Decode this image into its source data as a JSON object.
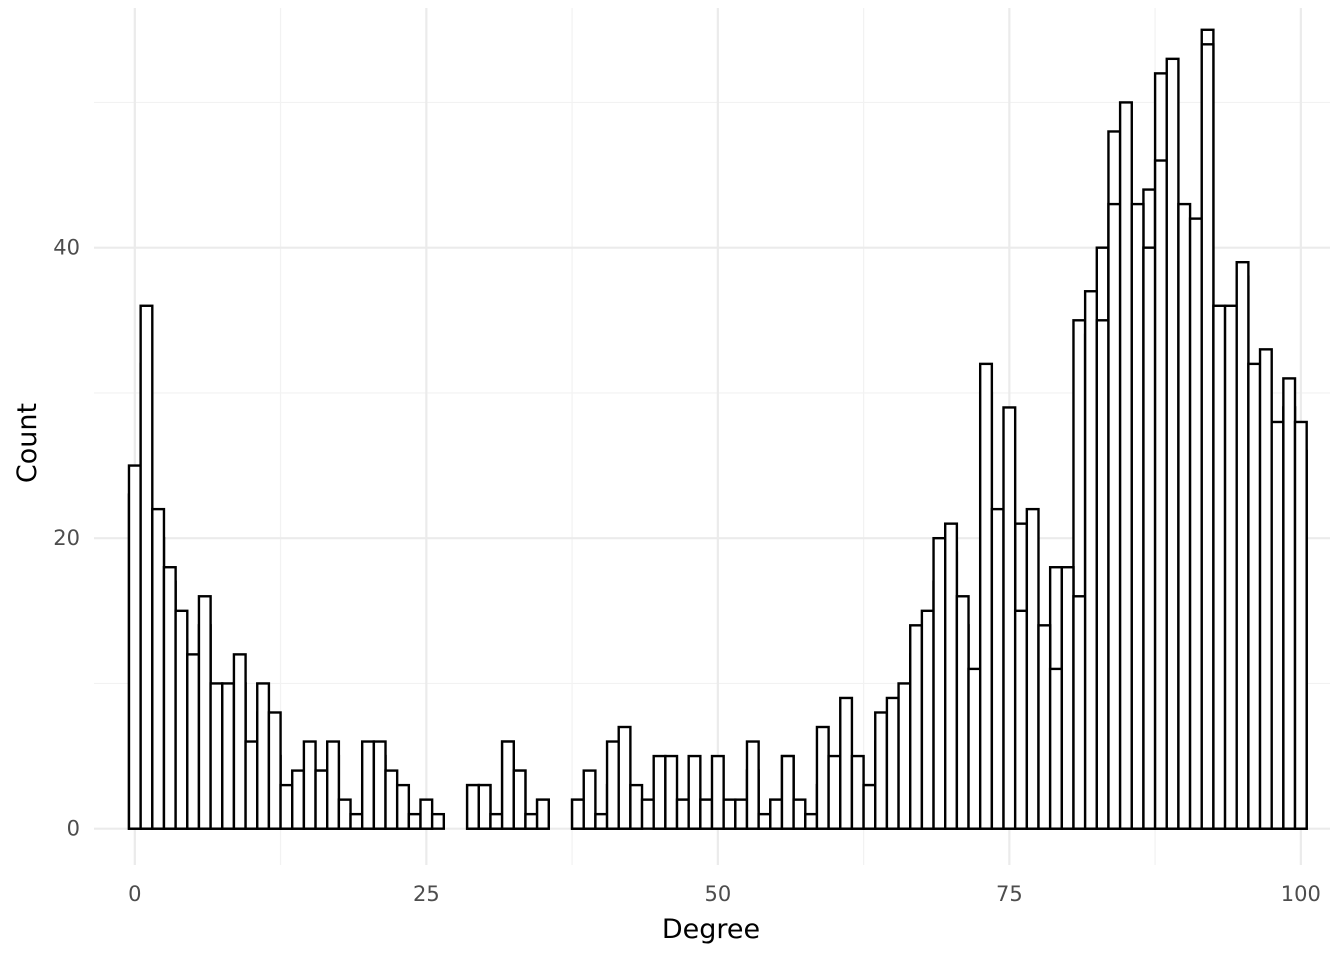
{
  "chart_data": {
    "type": "bar",
    "xlabel": "Degree",
    "ylabel": "Count",
    "xlim": [
      -3.5,
      102.5
    ],
    "ylim": [
      -2.5,
      56.5
    ],
    "xticks": [
      0,
      25,
      50,
      75,
      100
    ],
    "xtick_labels": [
      "0",
      "25",
      "50",
      "75",
      "100"
    ],
    "yticks": [
      0,
      20,
      40
    ],
    "ytick_labels": [
      "0",
      "20",
      "40"
    ],
    "bin_width": 1,
    "grid": true,
    "fill": "#ffffff",
    "edge": "#000000",
    "series": [
      {
        "values": [
          23,
          32,
          20,
          17,
          13,
          9,
          14,
          8,
          8,
          10,
          4,
          8,
          5,
          2,
          3,
          4,
          4,
          5,
          1,
          1,
          3,
          5,
          2,
          1,
          1,
          1,
          0,
          0,
          0,
          3,
          3,
          1,
          6,
          4,
          1,
          2,
          0,
          0,
          2,
          1,
          1,
          3,
          1,
          1,
          0,
          2,
          2,
          2,
          1,
          2,
          2,
          1,
          1,
          4,
          1,
          2,
          5,
          1,
          1,
          3,
          2,
          4,
          3,
          3,
          6,
          6,
          9,
          12,
          12,
          17,
          19,
          14,
          8,
          30,
          18,
          15,
          21,
          13,
          11,
          18,
          15,
          35,
          34,
          40,
          48,
          42,
          40,
          44,
          52,
          43,
          41,
          41,
          55,
          35,
          35,
          38,
          29,
          28,
          27,
          29,
          26
        ]
      },
      {
        "values": [
          25,
          36,
          22,
          18,
          15,
          12,
          16,
          10,
          10,
          12,
          6,
          10,
          8,
          3,
          4,
          6,
          4,
          6,
          2,
          1,
          6,
          6,
          4,
          3,
          1,
          2,
          1,
          0,
          0,
          3,
          3,
          1,
          6,
          4,
          1,
          2,
          0,
          0,
          2,
          4,
          1,
          6,
          7,
          3,
          2,
          5,
          5,
          2,
          5,
          2,
          5,
          2,
          2,
          6,
          1,
          2,
          5,
          2,
          1,
          7,
          5,
          9,
          5,
          3,
          8,
          9,
          10,
          14,
          15,
          20,
          21,
          16,
          11,
          32,
          22,
          29,
          15,
          22,
          14,
          11,
          18,
          16,
          37,
          35,
          43,
          50,
          43,
          40,
          46,
          53,
          43,
          42,
          54,
          36,
          36,
          39,
          32,
          33,
          28,
          31,
          28
        ]
      }
    ]
  }
}
